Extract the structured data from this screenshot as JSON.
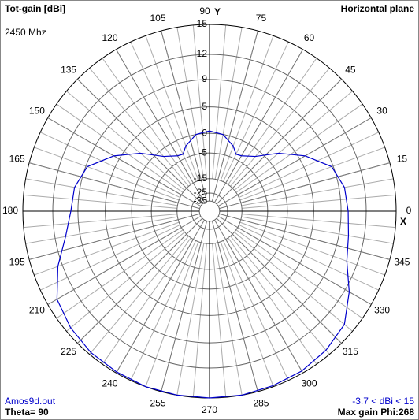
{
  "chart_data": {
    "type": "polar",
    "title": "Tot-gain [dBi]",
    "subtitle": "2450 Mhz",
    "plane": "Horizontal plane",
    "file": "Amos9d.out",
    "theta_label": "Theta= 90",
    "range_label": "-3.7 < dBi < 15",
    "max_label": "Max gain Phi:268",
    "x_axis_label": "X",
    "y_axis_label": "Y",
    "radial_scale": "arrl-log",
    "rlim": [
      -35,
      15
    ],
    "rticks": [
      15,
      12,
      9,
      5,
      0,
      -5,
      -15,
      -25,
      -35
    ],
    "angle_ticks": [
      0,
      15,
      30,
      45,
      60,
      75,
      90,
      105,
      120,
      135,
      150,
      165,
      180,
      195,
      210,
      225,
      240,
      255,
      270,
      285,
      300,
      315,
      330,
      345
    ],
    "series": [
      {
        "color": "#0000cc",
        "theta": [
          0,
          10,
          20,
          30,
          40,
          50,
          60,
          65,
          70,
          80,
          90,
          100,
          110,
          115,
          120,
          130,
          140,
          150,
          160,
          170,
          180,
          190,
          200,
          210,
          220,
          230,
          240,
          250,
          260,
          270,
          280,
          290,
          300,
          310,
          320,
          330,
          340,
          350
        ],
        "values": [
          9.9,
          9.7,
          8.8,
          6,
          2.5,
          -1.5,
          -3.4,
          -3.7,
          -2,
          0,
          0.5,
          0,
          -2,
          -3.7,
          -3.4,
          -1.5,
          2.5,
          6,
          8.8,
          9.7,
          9.9,
          10.8,
          12.5,
          14,
          14.5,
          14.8,
          14.9,
          15,
          15,
          15,
          15,
          14.9,
          14.8,
          14.5,
          14,
          12.5,
          10.8,
          10.2
        ]
      }
    ]
  }
}
